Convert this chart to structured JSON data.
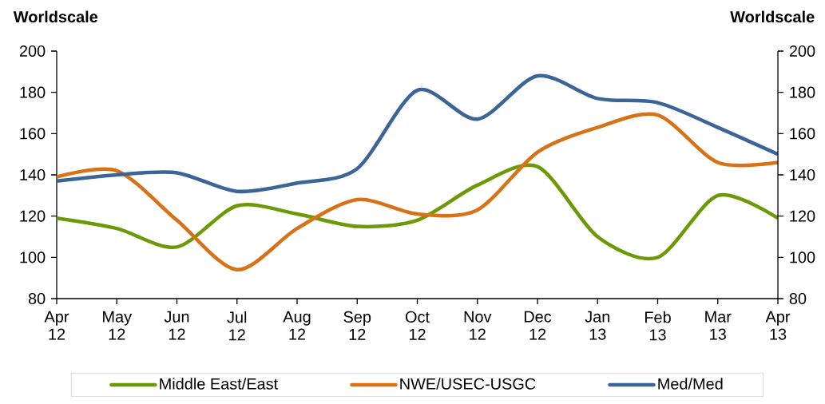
{
  "chart_data": {
    "type": "line",
    "ylabel": "Worldscale",
    "y2label": "Worldscale",
    "categories": [
      "Apr 12",
      "May 12",
      "Jun 12",
      "Jul 12",
      "Aug 12",
      "Sep 12",
      "Oct 12",
      "Nov 12",
      "Dec 12",
      "Jan 13",
      "Feb 13",
      "Mar 13",
      "Apr 13"
    ],
    "ylim": [
      80,
      200
    ],
    "yticks": [
      80,
      100,
      120,
      140,
      160,
      180,
      200
    ],
    "y2lim": [
      80,
      200
    ],
    "y2ticks": [
      80,
      100,
      120,
      140,
      160,
      180,
      200
    ],
    "legend": "bottom",
    "marker": "none",
    "series": [
      {
        "name": "Middle East/East",
        "color": "#6b9a06",
        "values": [
          119,
          114,
          105,
          125,
          121,
          115,
          118,
          135,
          144,
          110,
          100,
          130,
          119
        ]
      },
      {
        "name": "NWE/USEC-USGC",
        "color": "#d97116",
        "values": [
          139,
          142,
          118,
          94,
          114,
          128,
          121,
          123,
          151,
          163,
          169,
          146,
          146
        ]
      },
      {
        "name": "Med/Med",
        "color": "#3a6596",
        "values": [
          137,
          140,
          141,
          132,
          136,
          143,
          181,
          167,
          188,
          177,
          175,
          163,
          150
        ]
      }
    ]
  }
}
